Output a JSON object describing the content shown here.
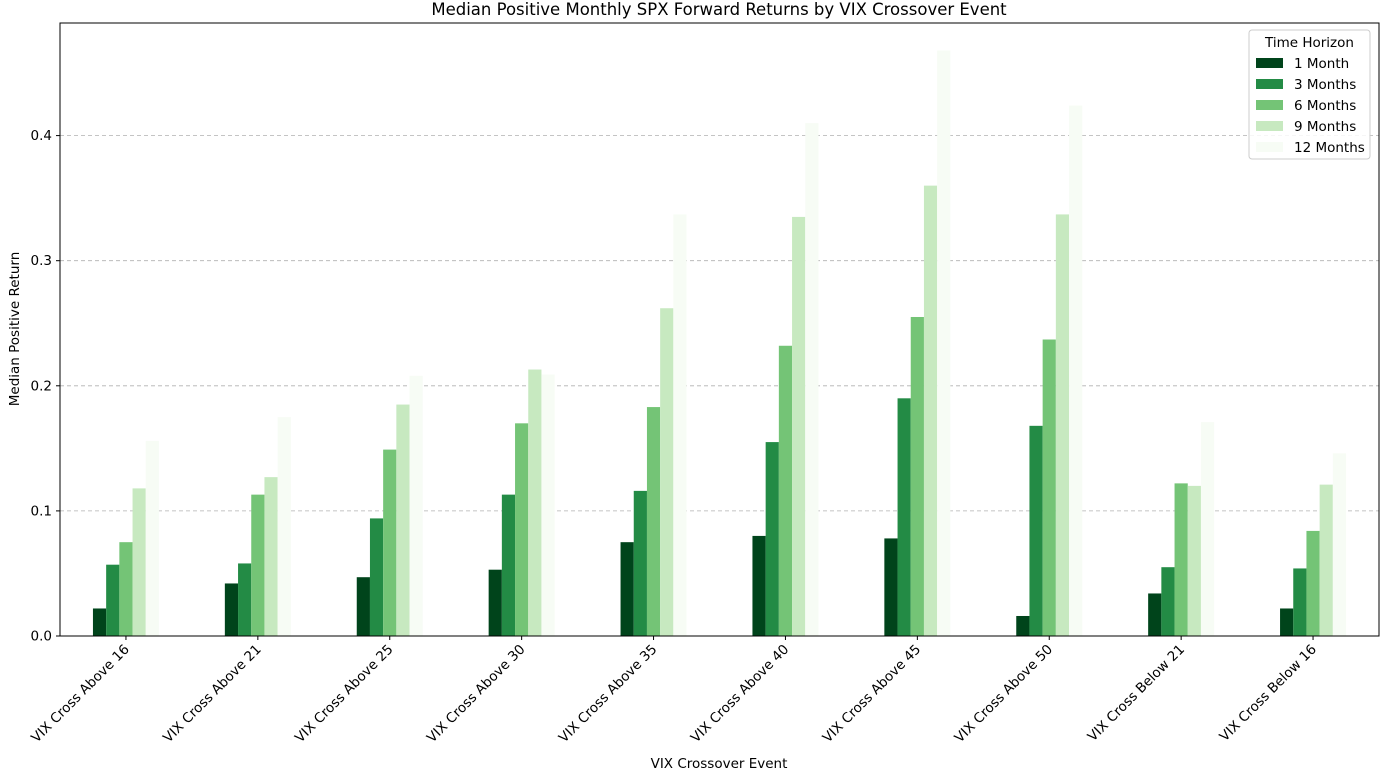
{
  "chart_data": {
    "type": "bar",
    "title": "Median Positive Monthly SPX Forward Returns by VIX Crossover Event",
    "xlabel": "VIX Crossover Event",
    "ylabel": "Median Positive Return",
    "ylim": [
      0,
      0.49
    ],
    "yticks": [
      "0.0",
      "0.1",
      "0.2",
      "0.3",
      "0.4"
    ],
    "grid": "y dashed",
    "legend": {
      "title": "Time Horizon",
      "placement": "top-right"
    },
    "categories": [
      "VIX Cross Above 16",
      "VIX Cross Above 21",
      "VIX Cross Above 25",
      "VIX Cross Above 30",
      "VIX Cross Above 35",
      "VIX Cross Above 40",
      "VIX Cross Above 45",
      "VIX Cross Above 50",
      "VIX Cross Below 21",
      "VIX Cross Below 16"
    ],
    "series": [
      {
        "name": "1 Month",
        "color": "#00441b",
        "values": [
          0.022,
          0.042,
          0.047,
          0.053,
          0.075,
          0.08,
          0.078,
          0.016,
          0.034,
          0.022
        ]
      },
      {
        "name": "3 Months",
        "color": "#238b45",
        "values": [
          0.057,
          0.058,
          0.094,
          0.113,
          0.116,
          0.155,
          0.19,
          0.168,
          0.055,
          0.054
        ]
      },
      {
        "name": "6 Months",
        "color": "#74c476",
        "values": [
          0.075,
          0.113,
          0.149,
          0.17,
          0.183,
          0.232,
          0.255,
          0.237,
          0.122,
          0.084
        ]
      },
      {
        "name": "9 Months",
        "color": "#c7e9c0",
        "values": [
          0.118,
          0.127,
          0.185,
          0.213,
          0.262,
          0.335,
          0.36,
          0.337,
          0.12,
          0.121
        ]
      },
      {
        "name": "12 Months",
        "color": "#f7fcf5",
        "values": [
          0.156,
          0.175,
          0.208,
          0.209,
          0.337,
          0.41,
          0.468,
          0.424,
          0.171,
          0.146
        ]
      }
    ]
  }
}
